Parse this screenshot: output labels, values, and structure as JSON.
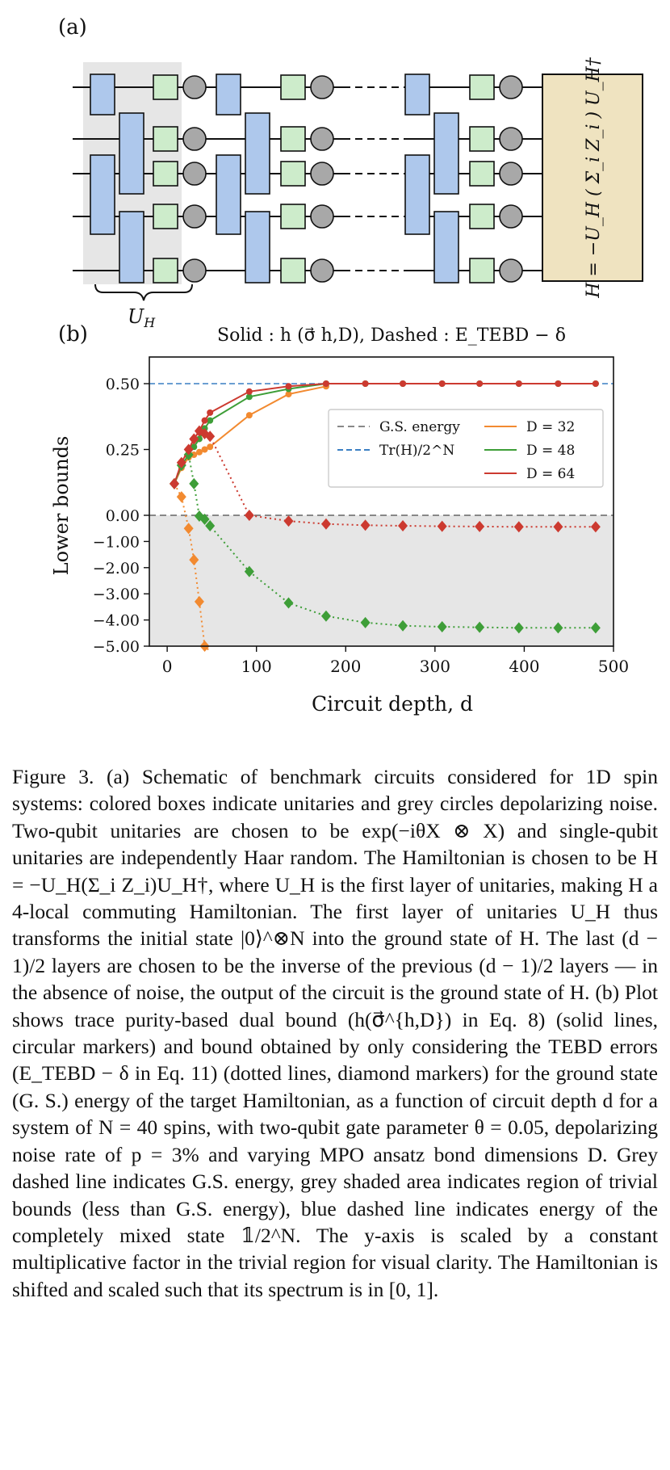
{
  "panel_a": {
    "label": "(a)",
    "uh_label": "U",
    "uh_sub": "H",
    "hamiltonian_label": "H = −U_H ( Σ_i Z_i ) U_H†"
  },
  "panel_b": {
    "label": "(b)",
    "title": "Solid : h (σ⃗ h,D),  Dashed : E_TEBD − δ"
  },
  "colors": {
    "shade": "#e6e6e6",
    "unitary": "#aec8ec",
    "single": "#cdeccb",
    "noise": "#a8a8a8",
    "ham_box": "#efe3c0",
    "gs": "#888888",
    "mixed": "#3a7fc4",
    "d32": "#f28a30",
    "d48": "#3e9e38",
    "d64": "#cc3a30"
  },
  "chart_data": {
    "type": "line",
    "xlabel": "Circuit depth, d",
    "ylabel": "Lower bounds",
    "xlim": [
      -20,
      500
    ],
    "xticks": [
      "0",
      "100",
      "200",
      "300",
      "400",
      "500"
    ],
    "yticks": [
      "0.50",
      "0.25",
      "0.00",
      "−1.00",
      "−2.00",
      "−3.00",
      "−4.00",
      "−5.00"
    ],
    "y_scale": "linear above 0 (0 to 0.5), compressed linear below 0 (0 to −5); trivial region below 0 shaded grey",
    "reference_lines": [
      {
        "name": "G.S. energy",
        "y": 0.0,
        "style": "dashed",
        "color": "#888888"
      },
      {
        "name": "Tr(H)/2^N",
        "y": 0.5,
        "style": "dashed",
        "color": "#3a7fc4"
      }
    ],
    "legend": {
      "placement": "upper-right",
      "entries": [
        "G.S. energy",
        "Tr(H)/2^N",
        "D =  32",
        "D =  48",
        "D =  64"
      ]
    },
    "series": [
      {
        "name": "D =  32",
        "color": "#f28a30",
        "kind": "solid",
        "x": [
          8,
          16,
          24,
          30,
          36,
          42,
          48,
          92,
          136,
          178
        ],
        "y": [
          0.12,
          0.18,
          0.22,
          0.23,
          0.24,
          0.25,
          0.26,
          0.38,
          0.46,
          0.49
        ]
      },
      {
        "name": "D =  48",
        "color": "#3e9e38",
        "kind": "solid",
        "x": [
          8,
          16,
          24,
          30,
          36,
          42,
          48,
          92,
          136,
          178,
          222,
          264,
          308,
          350,
          394,
          438,
          480
        ],
        "y": [
          0.12,
          0.19,
          0.23,
          0.26,
          0.29,
          0.33,
          0.36,
          0.45,
          0.48,
          0.5,
          0.5,
          0.5,
          0.5,
          0.5,
          0.5,
          0.5,
          0.5
        ]
      },
      {
        "name": "D =  64",
        "color": "#cc3a30",
        "kind": "solid",
        "x": [
          8,
          16,
          24,
          30,
          36,
          42,
          48,
          92,
          136,
          178,
          222,
          264,
          308,
          350,
          394,
          438,
          480
        ],
        "y": [
          0.12,
          0.2,
          0.25,
          0.29,
          0.32,
          0.36,
          0.39,
          0.47,
          0.49,
          0.5,
          0.5,
          0.5,
          0.5,
          0.5,
          0.5,
          0.5,
          0.5
        ]
      },
      {
        "name": "D =  32",
        "color": "#f28a30",
        "kind": "dotted",
        "x": [
          8,
          16,
          24,
          30,
          36,
          42,
          48
        ],
        "y": [
          0.12,
          0.07,
          -0.5,
          -1.7,
          -3.3,
          -5.0,
          -5.2
        ]
      },
      {
        "name": "D =  48",
        "color": "#3e9e38",
        "kind": "dotted",
        "x": [
          8,
          16,
          24,
          30,
          36,
          42,
          48,
          92,
          136,
          178,
          222,
          264,
          308,
          350,
          394,
          438,
          480
        ],
        "y": [
          0.12,
          0.19,
          0.23,
          0.12,
          -0.03,
          -0.15,
          -0.4,
          -2.15,
          -3.35,
          -3.85,
          -4.1,
          -4.22,
          -4.26,
          -4.28,
          -4.3,
          -4.3,
          -4.3
        ]
      },
      {
        "name": "D =  64",
        "color": "#cc3a30",
        "kind": "dotted",
        "x": [
          8,
          16,
          24,
          30,
          36,
          42,
          48,
          92,
          136,
          178,
          222,
          264,
          308,
          350,
          394,
          438,
          480
        ],
        "y": [
          0.12,
          0.2,
          0.25,
          0.29,
          0.32,
          0.31,
          0.3,
          0.0,
          -0.22,
          -0.33,
          -0.38,
          -0.4,
          -0.42,
          -0.43,
          -0.44,
          -0.44,
          -0.44
        ]
      }
    ]
  },
  "caption_text": "Figure 3. (a) Schematic of benchmark circuits considered for 1D spin systems: colored boxes indicate unitaries and grey circles depolarizing noise. Two-qubit unitaries are chosen to be exp(−iθX ⊗ X) and single-qubit unitaries are independently Haar random. The Hamiltonian is chosen to be H = −U_H(Σ_i Z_i)U_H†, where U_H is the first layer of unitaries, making H a 4-local commuting Hamiltonian. The first layer of unitaries U_H thus transforms the initial state |0⟩^⊗N into the ground state of H. The last (d − 1)/2 layers are chosen to be the inverse of the previous (d − 1)/2 layers — in the absence of noise, the output of the circuit is the ground state of H. (b) Plot shows trace purity-based dual bound (h(σ⃗^{h,D}) in Eq. 8) (solid lines, circular markers) and bound obtained by only considering the TEBD errors (E_TEBD − δ in Eq. 11) (dotted lines, diamond markers) for the ground state (G. S.) energy of the target Hamiltonian, as a function of circuit depth d for a system of N = 40 spins, with two-qubit gate parameter θ = 0.05, depolarizing noise rate of p = 3% and varying MPO ansatz bond dimensions D. Grey dashed line indicates G.S. energy, grey shaded area indicates region of trivial bounds (less than G.S. energy), blue dashed line indicates energy of the completely mixed state 𝟙/2^N. The y-axis is scaled by a constant multiplicative factor in the trivial region for visual clarity. The Hamiltonian is shifted and scaled such that its spectrum is in [0, 1]."
}
